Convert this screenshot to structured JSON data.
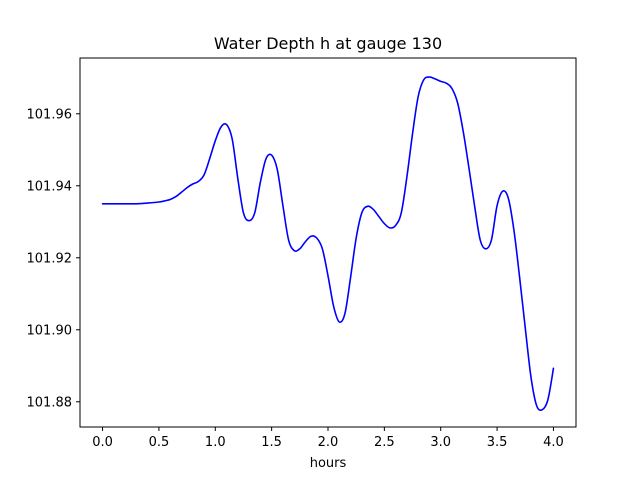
{
  "chart_data": {
    "type": "line",
    "title": "Water Depth h at gauge 130",
    "xlabel": "hours",
    "ylabel": "",
    "xlim": [
      -0.2,
      4.2
    ],
    "ylim": [
      101.873,
      101.9755
    ],
    "xticks": [
      0.0,
      0.5,
      1.0,
      1.5,
      2.0,
      2.5,
      3.0,
      3.5,
      4.0
    ],
    "xtick_labels": [
      "0.0",
      "0.5",
      "1.0",
      "1.5",
      "2.0",
      "2.5",
      "3.0",
      "3.5",
      "4.0"
    ],
    "yticks": [
      101.88,
      101.9,
      101.92,
      101.94,
      101.96
    ],
    "ytick_labels": [
      "101.88",
      "101.90",
      "101.92",
      "101.94",
      "101.96"
    ],
    "grid": false,
    "series": [
      {
        "color": "#0000ff",
        "x": [
          0.0,
          0.1,
          0.2,
          0.3,
          0.4,
          0.5,
          0.55,
          0.6,
          0.65,
          0.7,
          0.75,
          0.8,
          0.85,
          0.9,
          0.95,
          1.0,
          1.05,
          1.1,
          1.15,
          1.2,
          1.25,
          1.3,
          1.35,
          1.4,
          1.45,
          1.5,
          1.55,
          1.6,
          1.65,
          1.7,
          1.75,
          1.8,
          1.85,
          1.9,
          1.95,
          2.0,
          2.05,
          2.1,
          2.15,
          2.2,
          2.25,
          2.3,
          2.35,
          2.4,
          2.45,
          2.5,
          2.55,
          2.6,
          2.65,
          2.7,
          2.75,
          2.8,
          2.85,
          2.9,
          2.95,
          3.0,
          3.05,
          3.1,
          3.15,
          3.2,
          3.25,
          3.3,
          3.35,
          3.4,
          3.45,
          3.5,
          3.55,
          3.6,
          3.65,
          3.7,
          3.75,
          3.8,
          3.85,
          3.9,
          3.95,
          4.0
        ],
        "y": [
          101.935,
          101.935,
          101.935,
          101.935,
          101.9352,
          101.9355,
          101.9358,
          101.9362,
          101.937,
          101.9382,
          101.9395,
          101.9405,
          101.9412,
          101.943,
          101.9475,
          101.9525,
          101.9563,
          101.957,
          101.953,
          101.942,
          101.9325,
          101.9303,
          101.9325,
          101.941,
          101.9475,
          101.9485,
          101.9445,
          101.9345,
          101.925,
          101.922,
          101.9225,
          101.9245,
          101.926,
          101.9255,
          101.9225,
          101.915,
          101.9065,
          101.9022,
          101.9045,
          101.9145,
          101.9255,
          101.9325,
          101.9343,
          101.9335,
          101.9315,
          101.9295,
          101.9283,
          101.929,
          101.9325,
          101.9425,
          101.9545,
          101.9648,
          101.9695,
          101.9702,
          101.9697,
          101.969,
          101.9685,
          101.967,
          101.963,
          101.955,
          101.945,
          101.9345,
          101.925,
          101.9225,
          101.925,
          101.9345,
          101.9385,
          101.9365,
          101.9275,
          101.9145,
          101.9005,
          101.887,
          101.879,
          101.8778,
          101.8805,
          101.8893
        ]
      }
    ]
  }
}
